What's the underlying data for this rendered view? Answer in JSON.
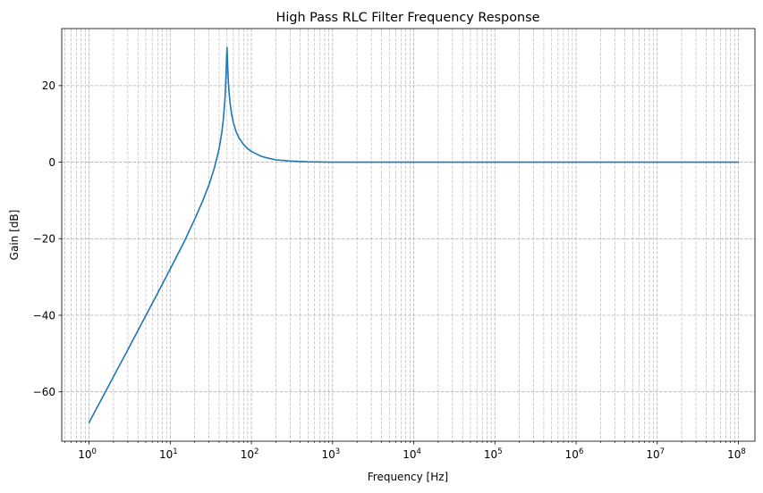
{
  "chart_data": {
    "type": "line",
    "title": "High Pass RLC Filter Frequency Response",
    "xlabel": "Frequency [Hz]",
    "ylabel": "Gain [dB]",
    "xscale": "log",
    "xlim": [
      0.46,
      160000000
    ],
    "ylim": [
      -72.9,
      34.9
    ],
    "grid": "both, dashed",
    "x_ticks": [
      {
        "value": 1,
        "base": "10",
        "exp": "0"
      },
      {
        "value": 10,
        "base": "10",
        "exp": "1"
      },
      {
        "value": 100,
        "base": "10",
        "exp": "2"
      },
      {
        "value": 1000,
        "base": "10",
        "exp": "3"
      },
      {
        "value": 10000,
        "base": "10",
        "exp": "4"
      },
      {
        "value": 100000,
        "base": "10",
        "exp": "5"
      },
      {
        "value": 1000000,
        "base": "10",
        "exp": "6"
      },
      {
        "value": 10000000,
        "base": "10",
        "exp": "7"
      },
      {
        "value": 100000000,
        "base": "10",
        "exp": "8"
      }
    ],
    "y_ticks": [
      {
        "value": 20,
        "label": "20"
      },
      {
        "value": 0,
        "label": "0"
      },
      {
        "value": -20,
        "label": "−20"
      },
      {
        "value": -40,
        "label": "−40"
      },
      {
        "value": -60,
        "label": "−60"
      }
    ],
    "series": [
      {
        "color": "#1f77b4",
        "x": [
          1,
          1.5,
          2,
          3,
          5,
          7,
          10,
          15,
          20,
          25,
          30,
          35,
          40,
          43,
          45,
          47,
          48,
          49,
          49.5,
          50,
          50.5,
          51,
          52,
          53,
          55,
          57,
          60,
          65,
          70,
          80,
          90,
          100,
          130,
          150,
          200,
          300,
          500,
          1000,
          10000,
          100000,
          1000000,
          10000000,
          100000000
        ],
        "y": [
          -68.0,
          -61.0,
          -56.0,
          -49.0,
          -40.1,
          -34.2,
          -27.9,
          -20.6,
          -14.9,
          -10.2,
          -5.9,
          -1.5,
          3.5,
          7.5,
          11.0,
          15.9,
          19.5,
          24.5,
          27.5,
          30.0,
          27.7,
          25.0,
          21.0,
          18.3,
          14.8,
          12.6,
          10.3,
          7.9,
          6.4,
          4.6,
          3.5,
          2.8,
          1.6,
          1.2,
          0.6,
          0.3,
          0.1,
          0.0,
          0.0,
          0.0,
          0.0,
          0.0,
          0.0
        ]
      }
    ]
  }
}
